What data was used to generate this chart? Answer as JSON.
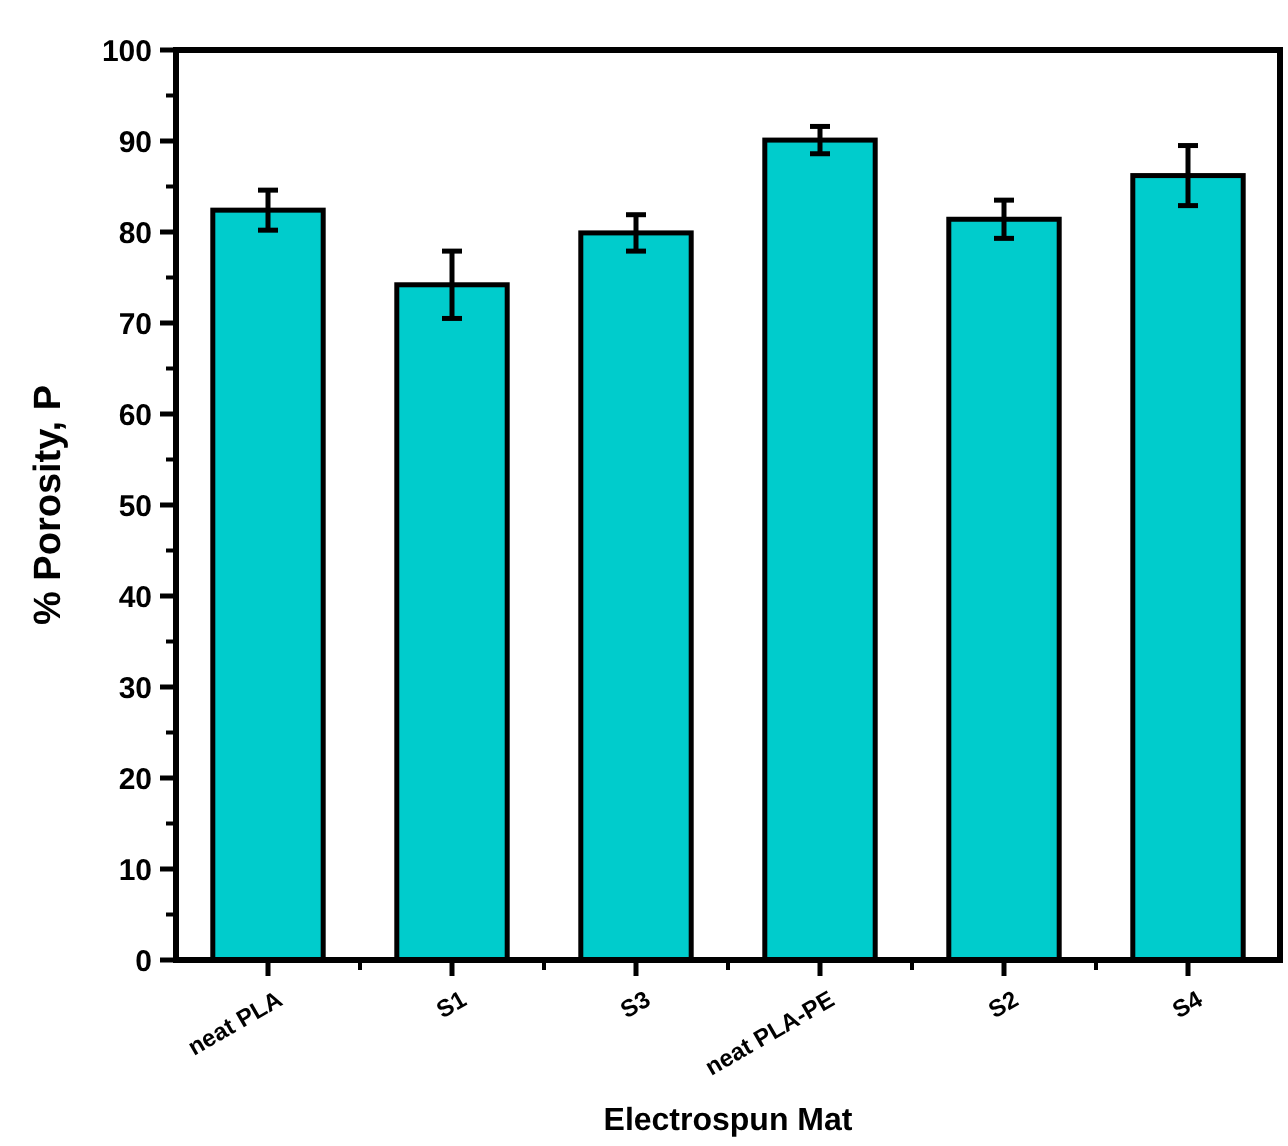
{
  "chart_data": {
    "type": "bar",
    "xlabel": "Electrospun Mat",
    "ylabel": "% Porosity, P",
    "categories": [
      "neat PLA",
      "S1",
      "S3",
      "neat PLA-PE",
      "S2",
      "S4"
    ],
    "values": [
      82.4,
      74.2,
      79.9,
      90.1,
      81.4,
      86.2
    ],
    "errors": [
      2.2,
      3.7,
      2,
      1.5,
      2.1,
      3.3
    ],
    "color": "#00cccc",
    "ylim": [
      0,
      100
    ],
    "yticks": [
      0,
      10,
      20,
      30,
      40,
      50,
      60,
      70,
      80,
      90,
      100
    ],
    "grid": false
  }
}
